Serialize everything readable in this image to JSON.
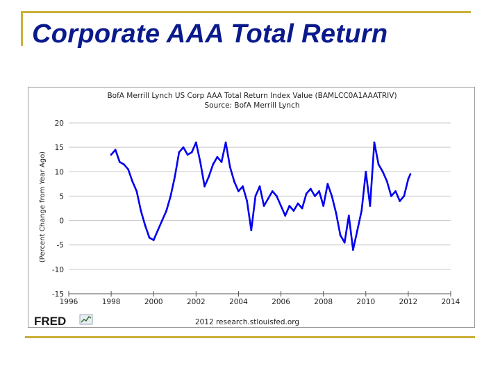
{
  "slide": {
    "title": "Corporate AAA Total Return"
  },
  "colors": {
    "accent_rule": "#c9b037",
    "title": "#0a1a8c",
    "series": "#0000ee",
    "grid": "#c8c8c8"
  },
  "branding": {
    "logo_text": "FRED",
    "credit": "2012 research.stlouisfed.org"
  },
  "chart_data": {
    "type": "line",
    "title": "BofA Merrill Lynch US Corp AAA Total Return Index Value (BAMLCC0A1AAATRIV)",
    "subtitle": "Source: BofA Merrill Lynch",
    "xlabel": "",
    "ylabel": "(Percent Change from Year Ago)",
    "xlim": [
      1996,
      2014
    ],
    "ylim": [
      -15,
      20
    ],
    "x_ticks": [
      1996,
      1998,
      2000,
      2002,
      2004,
      2006,
      2008,
      2010,
      2012,
      2014
    ],
    "y_ticks": [
      20,
      15,
      10,
      5,
      0,
      -5,
      -10,
      -15
    ],
    "grid": "horizontal",
    "legend": "none",
    "series": [
      {
        "name": "BAMLCC0A1AAATRIV",
        "x": [
          1998.0,
          1998.2,
          1998.4,
          1998.6,
          1998.8,
          1999.0,
          1999.2,
          1999.4,
          1999.6,
          1999.8,
          2000.0,
          2000.2,
          2000.4,
          2000.6,
          2000.8,
          2001.0,
          2001.2,
          2001.4,
          2001.6,
          2001.8,
          2002.0,
          2002.2,
          2002.4,
          2002.6,
          2002.8,
          2003.0,
          2003.2,
          2003.4,
          2003.6,
          2003.8,
          2004.0,
          2004.2,
          2004.4,
          2004.6,
          2004.8,
          2005.0,
          2005.2,
          2005.4,
          2005.6,
          2005.8,
          2006.0,
          2006.2,
          2006.4,
          2006.6,
          2006.8,
          2007.0,
          2007.2,
          2007.4,
          2007.6,
          2007.8,
          2008.0,
          2008.2,
          2008.4,
          2008.6,
          2008.8,
          2009.0,
          2009.2,
          2009.4,
          2009.6,
          2009.8,
          2010.0,
          2010.2,
          2010.4,
          2010.6,
          2010.8,
          2011.0,
          2011.2,
          2011.4,
          2011.6,
          2011.8,
          2012.0,
          2012.1
        ],
        "values": [
          13.5,
          14.5,
          12.0,
          11.5,
          10.5,
          8.0,
          6.0,
          2.0,
          -1.0,
          -3.5,
          -4.0,
          -2.0,
          0.0,
          2.0,
          5.0,
          9.0,
          14.0,
          15.0,
          13.5,
          14.0,
          16.0,
          12.0,
          7.0,
          9.0,
          11.5,
          13.0,
          12.0,
          16.0,
          11.0,
          8.0,
          6.0,
          7.0,
          4.0,
          -2.0,
          5.0,
          7.0,
          3.0,
          4.5,
          6.0,
          5.0,
          3.0,
          1.0,
          3.0,
          2.0,
          3.5,
          2.5,
          5.5,
          6.5,
          5.0,
          6.0,
          3.0,
          7.5,
          5.0,
          1.5,
          -3.0,
          -4.5,
          1.0,
          -6.0,
          -2.0,
          2.0,
          10.0,
          3.0,
          16.0,
          11.5,
          10.0,
          8.0,
          5.0,
          6.0,
          4.0,
          5.0,
          8.5,
          9.5
        ]
      }
    ]
  }
}
